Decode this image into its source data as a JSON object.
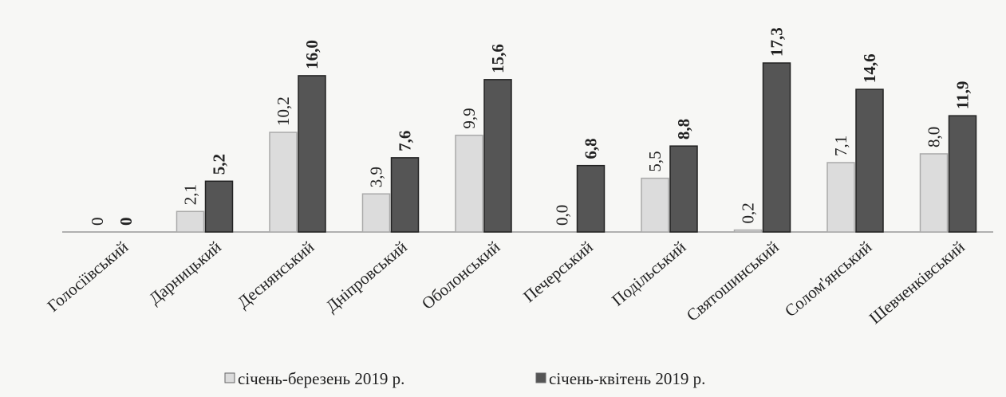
{
  "chart_data": {
    "type": "bar",
    "categories": [
      "Голосіївський",
      "Дарницький",
      "Деснянський",
      "Дніпровський",
      "Оболонський",
      "Печерський",
      "Подільський",
      "Святошинський",
      "Солом'янський",
      "Шевченківський"
    ],
    "series": [
      {
        "name": "січень-березень 2019 р.",
        "color": "#dcdcdc",
        "values": [
          0,
          2.1,
          10.2,
          3.9,
          9.9,
          0.0,
          5.5,
          0.2,
          7.1,
          8.0
        ],
        "value_labels": [
          "0",
          "2,1",
          "10,2",
          "3,9",
          "9,9",
          "0,0",
          "5,5",
          "0,2",
          "7,1",
          "8,0"
        ]
      },
      {
        "name": "січень-квітень 2019 р.",
        "color": "#555555",
        "values": [
          0,
          5.2,
          16.0,
          7.6,
          15.6,
          6.8,
          8.8,
          17.3,
          14.6,
          11.9
        ],
        "value_labels": [
          "0",
          "5,2",
          "16,0",
          "7,6",
          "15,6",
          "6,8",
          "8,8",
          "17,3",
          "14,6",
          "11,9"
        ]
      }
    ],
    "legend": "bottom"
  }
}
